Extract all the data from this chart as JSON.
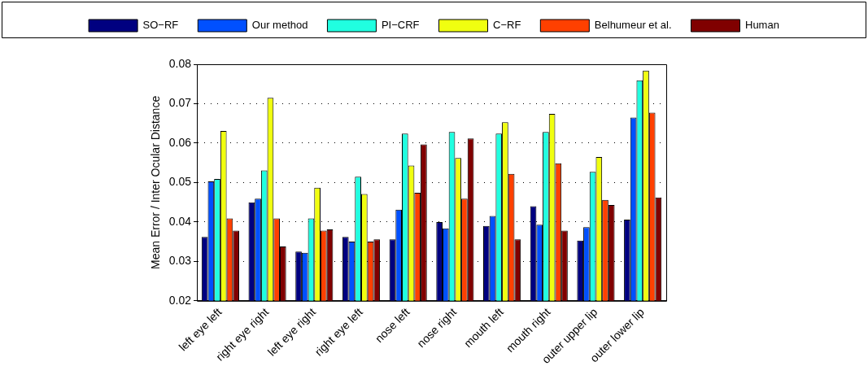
{
  "chart_data": {
    "type": "bar",
    "ylabel": "Mean Error / Inter Ocular Distance",
    "categories": [
      "left eye left",
      "right eye right",
      "left eye right",
      "right eye left",
      "nose left",
      "nose right",
      "mouth left",
      "mouth right",
      "outer upper lip",
      "outer lower lip"
    ],
    "series": [
      {
        "name": "SO−RF",
        "color": "#000080",
        "values": [
          0.0362,
          0.045,
          0.0325,
          0.0362,
          0.0356,
          0.04,
          0.039,
          0.044,
          0.0353,
          0.0406
        ]
      },
      {
        "name": "Our method",
        "color": "#0050ff",
        "values": [
          0.0503,
          0.0459,
          0.0322,
          0.035,
          0.0431,
          0.0384,
          0.0415,
          0.0393,
          0.0387,
          0.0665
        ]
      },
      {
        "name": "PI−CRF",
        "color": "#20ffe0",
        "values": [
          0.0509,
          0.0531,
          0.0409,
          0.0515,
          0.0624,
          0.0628,
          0.0624,
          0.0628,
          0.0527,
          0.0759
        ]
      },
      {
        "name": "C−RF",
        "color": "#f0ff10",
        "values": [
          0.0631,
          0.0715,
          0.0487,
          0.0471,
          0.0543,
          0.0562,
          0.0653,
          0.0674,
          0.0565,
          0.0784
        ]
      },
      {
        "name": "Belhumeur et al.",
        "color": "#ff4000",
        "values": [
          0.0409,
          0.0409,
          0.0378,
          0.035,
          0.0474,
          0.0459,
          0.0522,
          0.0549,
          0.0456,
          0.0677
        ]
      },
      {
        "name": "Human",
        "color": "#800000",
        "values": [
          0.0378,
          0.0338,
          0.0381,
          0.0356,
          0.0597,
          0.0612,
          0.0356,
          0.0378,
          0.0443,
          0.0462
        ]
      }
    ],
    "ylim": [
      0.02,
      0.08
    ],
    "yticks": [
      0.02,
      0.03,
      0.04,
      0.05,
      0.06,
      0.07,
      0.08
    ],
    "grid": "y",
    "legend": "top"
  }
}
